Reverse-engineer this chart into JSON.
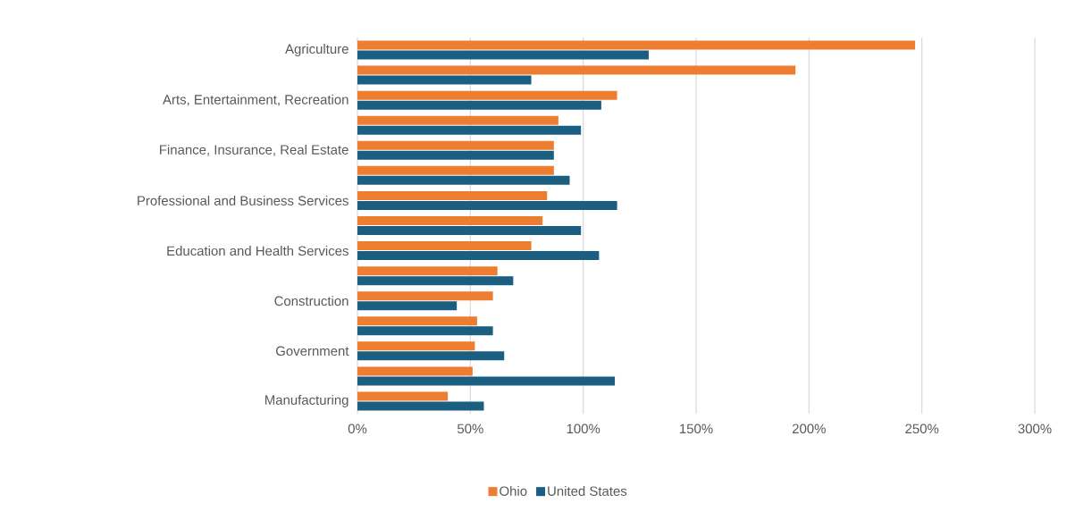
{
  "chart_data": {
    "type": "bar",
    "orientation": "horizontal",
    "categories": [
      "Agriculture",
      null,
      "Arts, Entertainment, Recreation",
      null,
      "Finance, Insurance, Real Estate",
      null,
      "Professional and Business Services",
      null,
      "Education and Health Services",
      null,
      "Construction",
      null,
      "Government",
      null,
      "Manufacturing"
    ],
    "series": [
      {
        "name": "Ohio",
        "color": "#ed7d31",
        "values": [
          247,
          194,
          115,
          89,
          87,
          87,
          84,
          82,
          77,
          62,
          60,
          53,
          52,
          51,
          40
        ]
      },
      {
        "name": "United States",
        "color": "#1a5f82",
        "values": [
          129,
          77,
          108,
          99,
          87,
          94,
          115,
          99,
          107,
          69,
          44,
          60,
          65,
          114,
          56
        ]
      }
    ],
    "xlim": [
      0,
      300
    ],
    "xticks": [
      {
        "value": 0,
        "label": "0%"
      },
      {
        "value": 50,
        "label": "50%"
      },
      {
        "value": 100,
        "label": "100%"
      },
      {
        "value": 150,
        "label": "150%"
      },
      {
        "value": 200,
        "label": "200%"
      },
      {
        "value": 250,
        "label": "250%"
      },
      {
        "value": 300,
        "label": "300%"
      }
    ],
    "grid": "x",
    "legend": "bottom"
  }
}
